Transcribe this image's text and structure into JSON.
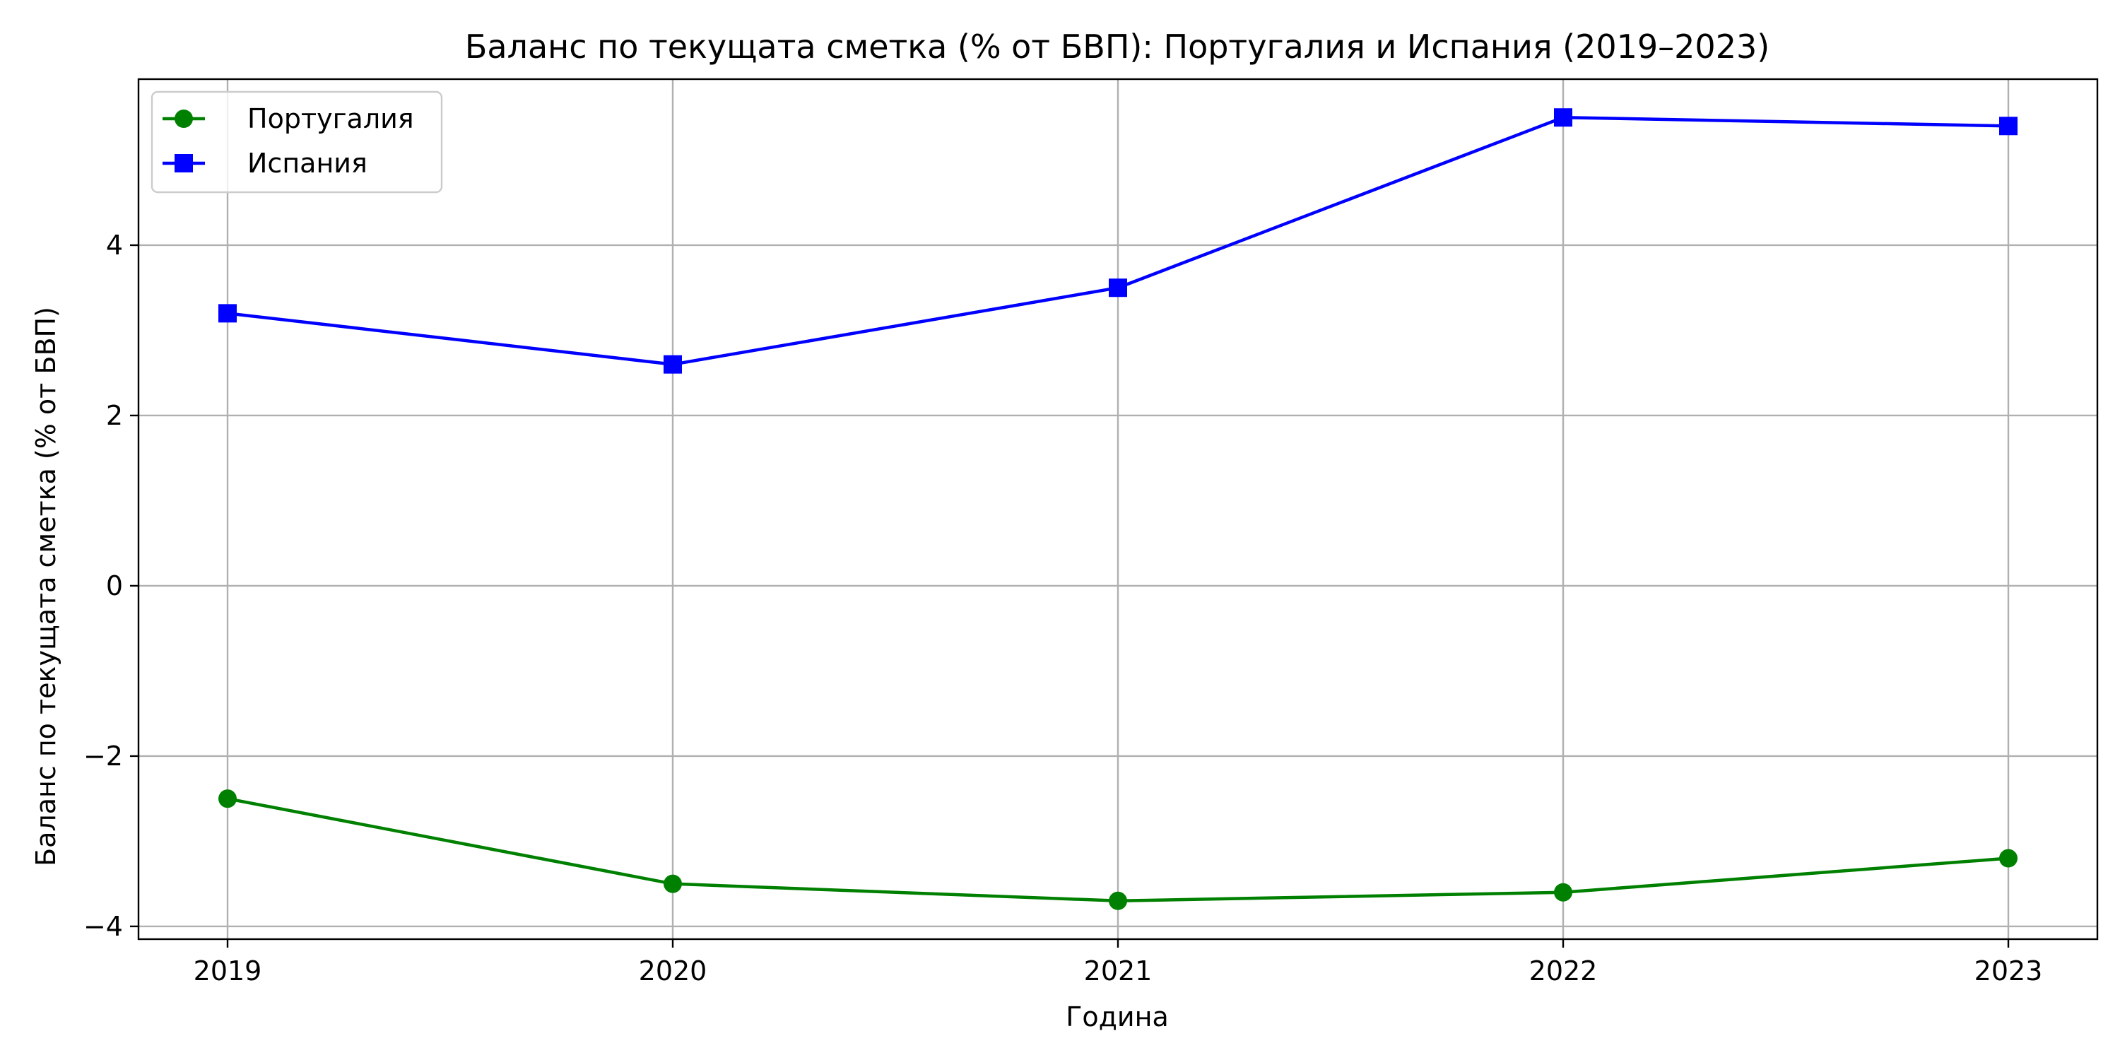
{
  "chart_data": {
    "type": "line",
    "title": "Баланс по текущата сметка (% от БВП): Португалия и Испания (2019–2023)",
    "xlabel": "Година",
    "ylabel": "Баланс по текущата сметка (% от БВП)",
    "x": [
      2019,
      2020,
      2021,
      2022,
      2023
    ],
    "x_tick_labels": [
      "2019",
      "2020",
      "2021",
      "2022",
      "2023"
    ],
    "yticks": [
      -4,
      -2,
      0,
      2,
      4
    ],
    "y_tick_labels": [
      "−4",
      "−2",
      "0",
      "2",
      "4"
    ],
    "ylim": [
      -4.15,
      5.95
    ],
    "xlim": [
      2018.8,
      2023.2
    ],
    "grid": true,
    "legend_position": "top-left",
    "series": [
      {
        "name": "Португалия",
        "color": "#008000",
        "marker": "circle",
        "values": [
          -2.5,
          -3.5,
          -3.7,
          -3.6,
          -3.2
        ]
      },
      {
        "name": "Испания",
        "color": "#0000ff",
        "marker": "square",
        "values": [
          3.2,
          2.6,
          3.5,
          5.5,
          5.4
        ]
      }
    ]
  }
}
